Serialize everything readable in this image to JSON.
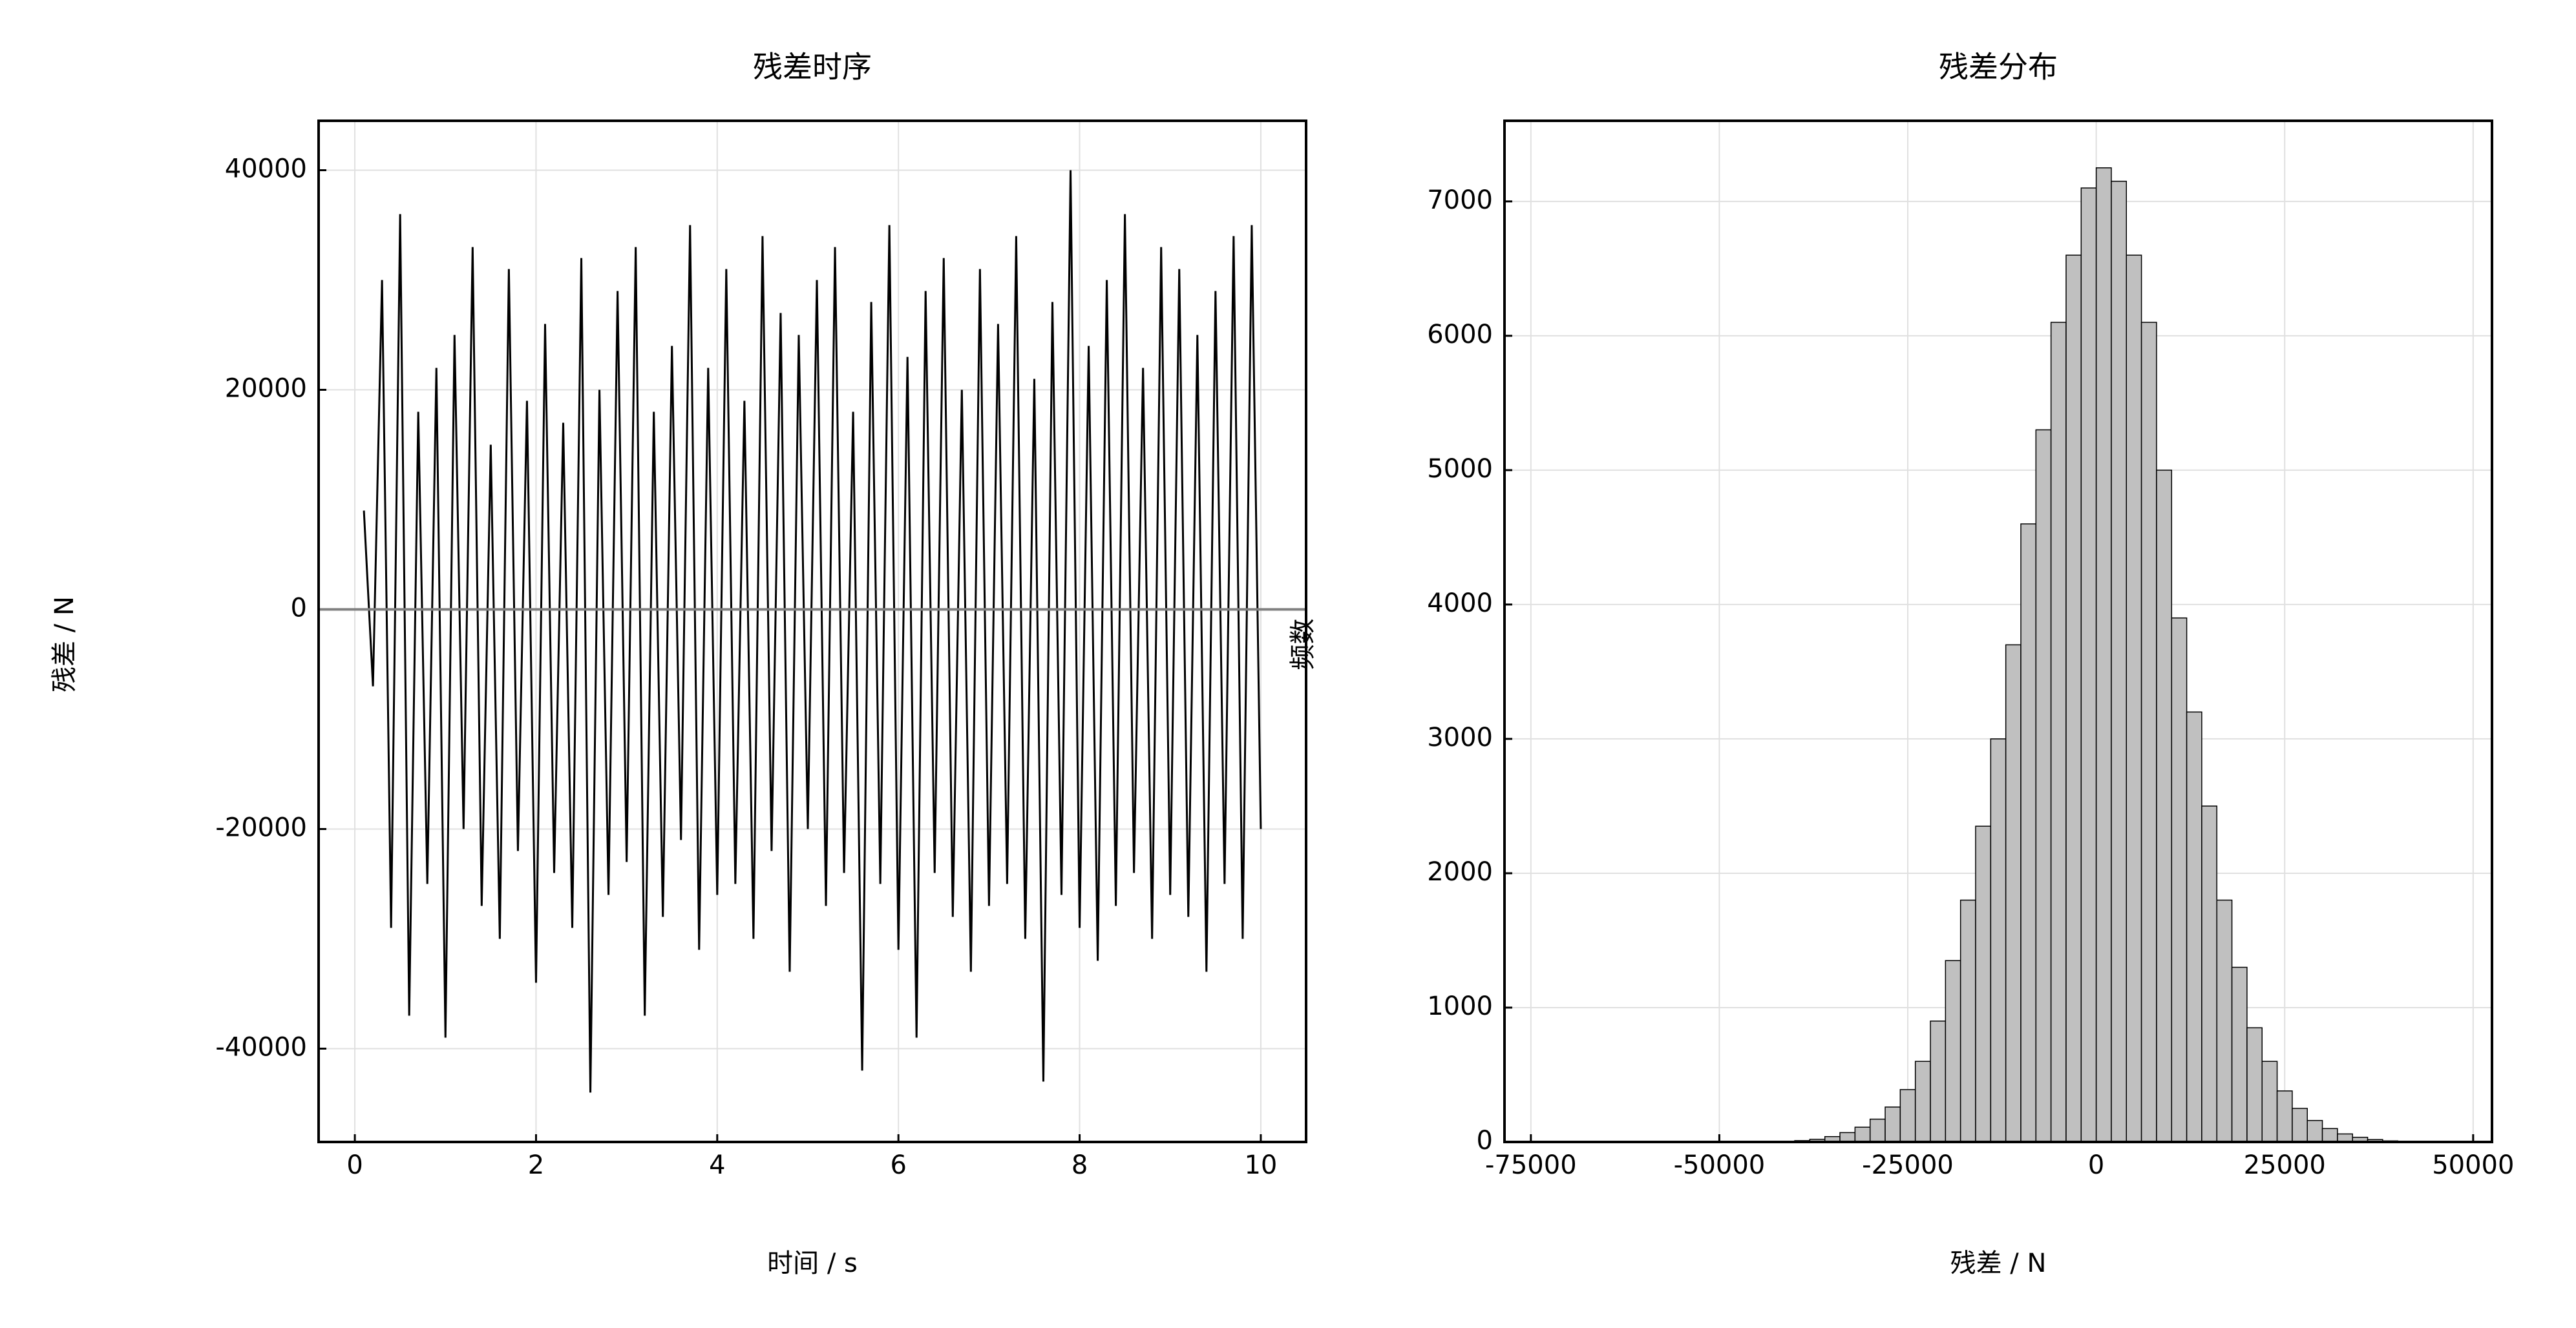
{
  "chart_data": [
    {
      "type": "line",
      "title": "残差时序",
      "x_label": "时间 / s",
      "y_label": "残差 / N",
      "xlim": [
        -0.4,
        10.5
      ],
      "xticks": [
        0,
        2,
        4,
        6,
        8,
        10
      ],
      "ylim": [
        -48500,
        44500
      ],
      "yticks": [
        -40000,
        -20000,
        0,
        20000,
        40000
      ],
      "grid": true,
      "hline": 0,
      "hline_color": "#808080",
      "series": [
        {
          "name": "残差",
          "color": "#000000",
          "x": [
            0.1,
            0.2,
            0.3,
            0.4,
            0.5,
            0.6,
            0.7,
            0.8,
            0.9,
            1.0,
            1.1,
            1.2,
            1.3,
            1.4,
            1.5,
            1.6,
            1.7,
            1.8,
            1.9,
            2.0,
            2.1,
            2.2,
            2.3,
            2.4,
            2.5,
            2.6,
            2.7,
            2.8,
            2.9,
            3.0,
            3.1,
            3.2,
            3.3,
            3.4,
            3.5,
            3.6,
            3.7,
            3.8,
            3.9,
            4.0,
            4.1,
            4.2,
            4.3,
            4.4,
            4.5,
            4.6,
            4.7,
            4.8,
            4.9,
            5.0,
            5.1,
            5.2,
            5.3,
            5.4,
            5.5,
            5.6,
            5.7,
            5.8,
            5.9,
            6.0,
            6.1,
            6.2,
            6.3,
            6.4,
            6.5,
            6.6,
            6.7,
            6.8,
            6.9,
            7.0,
            7.1,
            7.2,
            7.3,
            7.4,
            7.5,
            7.6,
            7.7,
            7.8,
            7.9,
            8.0,
            8.1,
            8.2,
            8.3,
            8.4,
            8.5,
            8.6,
            8.7,
            8.8,
            8.9,
            9.0,
            9.1,
            9.2,
            9.3,
            9.4,
            9.5,
            9.6,
            9.7,
            9.8,
            9.9,
            10.0
          ],
          "values": [
            9000,
            -7000,
            30000,
            -29000,
            36000,
            -37000,
            18000,
            -25000,
            22000,
            -39000,
            25000,
            -20000,
            33000,
            -27000,
            15000,
            -30000,
            31000,
            -22000,
            19000,
            -34000,
            26000,
            -24000,
            17000,
            -29000,
            32000,
            -44000,
            20000,
            -26000,
            29000,
            -23000,
            33000,
            -37000,
            18000,
            -28000,
            24000,
            -21000,
            35000,
            -31000,
            22000,
            -26000,
            31000,
            -25000,
            19000,
            -30000,
            34000,
            -22000,
            27000,
            -33000,
            25000,
            -20000,
            30000,
            -27000,
            33000,
            -24000,
            18000,
            -42000,
            28000,
            -25000,
            35000,
            -31000,
            23000,
            -39000,
            29000,
            -24000,
            32000,
            -28000,
            20000,
            -33000,
            31000,
            -27000,
            26000,
            -25000,
            34000,
            -30000,
            21000,
            -43000,
            28000,
            -26000,
            40000,
            -29000,
            24000,
            -32000,
            30000,
            -27000,
            36000,
            -24000,
            22000,
            -30000,
            33000,
            -26000,
            31000,
            -28000,
            25000,
            -33000,
            29000,
            -25000,
            34000,
            -30000,
            35000,
            -20000
          ]
        }
      ]
    },
    {
      "type": "histogram",
      "title": "残差分布",
      "x_label": "残差 / N",
      "y_label": "频数",
      "xlim": [
        -78500,
        52500
      ],
      "xticks": [
        -75000,
        -50000,
        -25000,
        0,
        25000,
        50000
      ],
      "ylim": [
        0,
        7600
      ],
      "yticks": [
        0,
        1000,
        2000,
        3000,
        4000,
        5000,
        6000,
        7000
      ],
      "grid": true,
      "color": "#c0c0c0",
      "edgecolor": "#000000",
      "bins": [
        -40000,
        -38000,
        -36000,
        -34000,
        -32000,
        -30000,
        -28000,
        -26000,
        -24000,
        -22000,
        -20000,
        -18000,
        -16000,
        -14000,
        -12000,
        -10000,
        -8000,
        -6000,
        -4000,
        -2000,
        0,
        2000,
        4000,
        6000,
        8000,
        10000,
        12000,
        14000,
        16000,
        18000,
        20000,
        22000,
        24000,
        26000,
        28000,
        30000,
        32000,
        34000,
        36000,
        38000,
        40000
      ],
      "counts": [
        10,
        20,
        40,
        70,
        110,
        170,
        260,
        390,
        600,
        900,
        1350,
        1800,
        2350,
        3000,
        3700,
        4600,
        5300,
        6100,
        6600,
        7100,
        7250,
        7150,
        6600,
        6100,
        5000,
        3900,
        3200,
        2500,
        1800,
        1300,
        850,
        600,
        380,
        250,
        160,
        100,
        60,
        35,
        18,
        8
      ]
    }
  ]
}
